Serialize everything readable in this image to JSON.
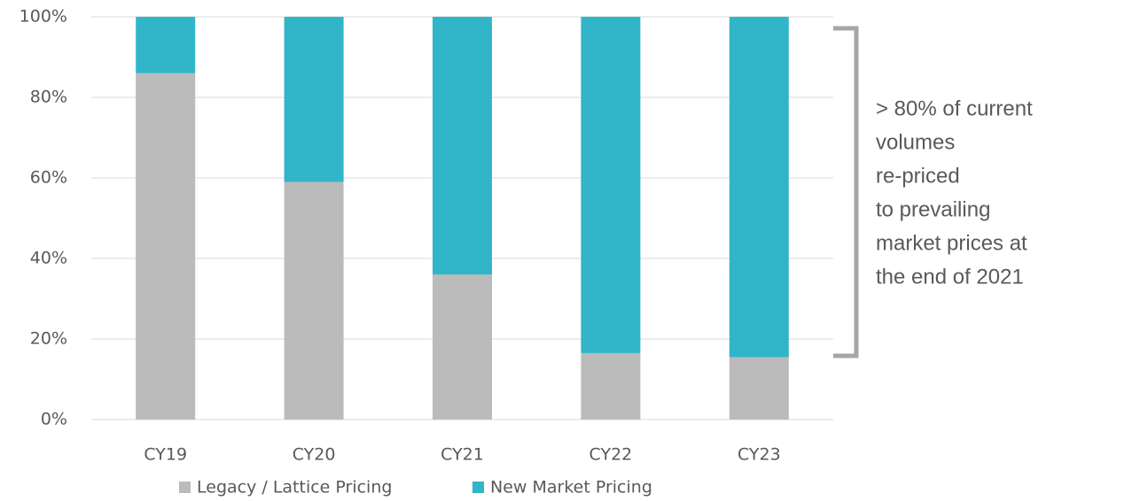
{
  "chart_data": {
    "type": "stacked_bar",
    "categories": [
      "CY19",
      "CY20",
      "CY21",
      "CY22",
      "CY23"
    ],
    "series": [
      {
        "name": "Legacy / Lattice Pricing",
        "color": "#bbbbbb",
        "values": [
          86,
          59,
          36,
          16.5,
          15.5
        ]
      },
      {
        "name": "New Market Pricing",
        "color": "#31b5c8",
        "values": [
          14,
          41,
          64,
          83.5,
          84.5
        ]
      }
    ],
    "ylim": [
      0,
      100
    ],
    "yticks": [
      {
        "value": 0,
        "label": "0%"
      },
      {
        "value": 20,
        "label": "20%"
      },
      {
        "value": 40,
        "label": "40%"
      },
      {
        "value": 60,
        "label": "60%"
      },
      {
        "value": 80,
        "label": "80%"
      },
      {
        "value": 100,
        "label": "100%"
      }
    ],
    "grid": true,
    "legend": "bottom",
    "annotation": [
      "> 80% of current",
      "volumes",
      "re-priced",
      "to prevailing",
      "market prices at",
      "the end of 2021"
    ]
  }
}
